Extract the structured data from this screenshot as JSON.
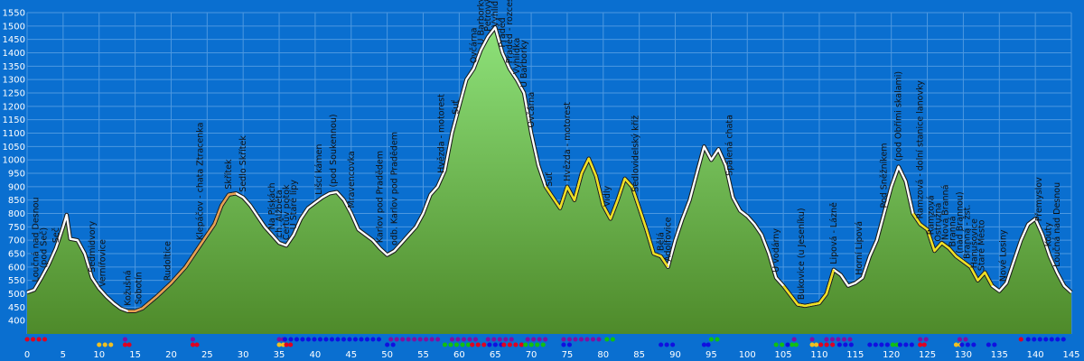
{
  "chart_data": {
    "type": "area",
    "title": "",
    "xlabel": "",
    "ylabel": "",
    "xlim": [
      0,
      145
    ],
    "ylim": [
      350,
      1550
    ],
    "x_ticks": [
      0,
      5,
      10,
      15,
      20,
      25,
      30,
      35,
      40,
      45,
      50,
      55,
      60,
      65,
      70,
      75,
      80,
      85,
      90,
      95,
      100,
      105,
      110,
      115,
      120,
      125,
      130,
      135,
      140,
      145
    ],
    "y_ticks": [
      400,
      450,
      500,
      550,
      600,
      650,
      700,
      750,
      800,
      850,
      900,
      950,
      1000,
      1050,
      1100,
      1150,
      1200,
      1250,
      1300,
      1350,
      1400,
      1450,
      1500,
      1550
    ],
    "grid": true,
    "colors": {
      "background": "#0a6fd0",
      "plot_bg": "#0a6fd0",
      "grid": "#4d98e0",
      "fill_top": "#8ee27a",
      "fill_bottom": "#4e8a2a",
      "edge_default": "#ffffff",
      "edge_road": "#e8a050",
      "edge_trail": "#f0e020",
      "red": "#e00020",
      "blue": "#1010e0",
      "purple": "#8010a0",
      "green": "#10c010",
      "yellow": "#f0c020"
    },
    "profile": [
      [
        0,
        505
      ],
      [
        1,
        515
      ],
      [
        2,
        560
      ],
      [
        3,
        610
      ],
      [
        4,
        670
      ],
      [
        5,
        750
      ],
      [
        5.5,
        795
      ],
      [
        6,
        705
      ],
      [
        7,
        700
      ],
      [
        8,
        650
      ],
      [
        9,
        560
      ],
      [
        10,
        520
      ],
      [
        11,
        490
      ],
      [
        12,
        465
      ],
      [
        13,
        445
      ],
      [
        14,
        435
      ],
      [
        15,
        435
      ],
      [
        16,
        445
      ],
      [
        18,
        490
      ],
      [
        20,
        540
      ],
      [
        22,
        600
      ],
      [
        24,
        680
      ],
      [
        26,
        760
      ],
      [
        27,
        830
      ],
      [
        28,
        870
      ],
      [
        29,
        875
      ],
      [
        30,
        860
      ],
      [
        31,
        830
      ],
      [
        32,
        790
      ],
      [
        33,
        750
      ],
      [
        34,
        720
      ],
      [
        35,
        690
      ],
      [
        36,
        680
      ],
      [
        37,
        720
      ],
      [
        38,
        780
      ],
      [
        39,
        820
      ],
      [
        40,
        840
      ],
      [
        41,
        860
      ],
      [
        42,
        875
      ],
      [
        43,
        880
      ],
      [
        44,
        850
      ],
      [
        45,
        800
      ],
      [
        46,
        740
      ],
      [
        48,
        700
      ],
      [
        49,
        670
      ],
      [
        50,
        645
      ],
      [
        51,
        660
      ],
      [
        52,
        690
      ],
      [
        53,
        720
      ],
      [
        54,
        750
      ],
      [
        55,
        800
      ],
      [
        56,
        870
      ],
      [
        57,
        900
      ],
      [
        58,
        960
      ],
      [
        59,
        1100
      ],
      [
        60,
        1200
      ],
      [
        61,
        1300
      ],
      [
        62,
        1340
      ],
      [
        63,
        1410
      ],
      [
        64,
        1460
      ],
      [
        65,
        1495
      ],
      [
        66,
        1400
      ],
      [
        67,
        1340
      ],
      [
        68,
        1300
      ],
      [
        69,
        1250
      ],
      [
        70,
        1100
      ],
      [
        71,
        980
      ],
      [
        72,
        900
      ],
      [
        73,
        860
      ],
      [
        74,
        820
      ],
      [
        75,
        900
      ],
      [
        76,
        850
      ],
      [
        77,
        950
      ],
      [
        78,
        1005
      ],
      [
        79,
        940
      ],
      [
        80,
        830
      ],
      [
        81,
        780
      ],
      [
        82,
        850
      ],
      [
        83,
        930
      ],
      [
        84,
        900
      ],
      [
        85,
        820
      ],
      [
        86,
        740
      ],
      [
        87,
        650
      ],
      [
        88,
        640
      ],
      [
        89,
        600
      ],
      [
        90,
        700
      ],
      [
        91,
        780
      ],
      [
        92,
        850
      ],
      [
        93,
        950
      ],
      [
        94,
        1050
      ],
      [
        95,
        1000
      ],
      [
        96,
        1040
      ],
      [
        97,
        980
      ],
      [
        98,
        860
      ],
      [
        99,
        810
      ],
      [
        100,
        790
      ],
      [
        101,
        760
      ],
      [
        102,
        720
      ],
      [
        103,
        650
      ],
      [
        104,
        560
      ],
      [
        105,
        530
      ],
      [
        106,
        495
      ],
      [
        107,
        460
      ],
      [
        108,
        455
      ],
      [
        109,
        460
      ],
      [
        110,
        465
      ],
      [
        111,
        500
      ],
      [
        112,
        590
      ],
      [
        113,
        570
      ],
      [
        114,
        530
      ],
      [
        115,
        540
      ],
      [
        116,
        560
      ],
      [
        117,
        640
      ],
      [
        118,
        700
      ],
      [
        119,
        800
      ],
      [
        120,
        900
      ],
      [
        121,
        975
      ],
      [
        122,
        920
      ],
      [
        123,
        800
      ],
      [
        124,
        760
      ],
      [
        125,
        740
      ],
      [
        126,
        660
      ],
      [
        127,
        690
      ],
      [
        128,
        670
      ],
      [
        129,
        640
      ],
      [
        130,
        620
      ],
      [
        131,
        600
      ],
      [
        132,
        550
      ],
      [
        133,
        580
      ],
      [
        134,
        530
      ],
      [
        135,
        510
      ],
      [
        136,
        540
      ],
      [
        137,
        620
      ],
      [
        138,
        700
      ],
      [
        139,
        760
      ],
      [
        140,
        780
      ],
      [
        141,
        720
      ],
      [
        142,
        640
      ],
      [
        143,
        580
      ],
      [
        144,
        530
      ],
      [
        145,
        505
      ]
    ],
    "edge_segments": [
      {
        "from": 14,
        "to": 29,
        "style": "road"
      },
      {
        "from": 72,
        "to": 89,
        "style": "trail"
      },
      {
        "from": 105,
        "to": 112,
        "style": "trail"
      },
      {
        "from": 123,
        "to": 134,
        "style": "trail"
      }
    ],
    "waypoints": [
      {
        "label": "Loučná nad Desnou",
        "x": 1.2
      },
      {
        "label": "(pod Seč)",
        "x": 2.3
      },
      {
        "label": "Seč",
        "x": 4.0
      },
      {
        "label": "Sedmidvory",
        "x": 9.0
      },
      {
        "label": "Vernířovice",
        "x": 10.5
      },
      {
        "label": "Kožušná",
        "x": 14.0
      },
      {
        "label": "Sobotín",
        "x": 15.5
      },
      {
        "label": "Rudoltice",
        "x": 19.5
      },
      {
        "label": "Klepáčov - chata Ztracenka",
        "x": 24.0
      },
      {
        "label": "Skřítek",
        "x": 28.0
      },
      {
        "label": "Sedlo Skřítek",
        "x": 30.0
      },
      {
        "label": "Na Pískách",
        "x": 34.0
      },
      {
        "label": "ch. Alžběta",
        "x": 35.0
      },
      {
        "label": "Čertův potok",
        "x": 36.0
      },
      {
        "label": "U Staré lípy",
        "x": 37.0
      },
      {
        "label": "Lišcí kámen",
        "x": 40.5
      },
      {
        "label": "(pod Soukennou)",
        "x": 42.5
      },
      {
        "label": "Mravencovka",
        "x": 45.0
      },
      {
        "label": "Karlov pod Pradědem",
        "x": 49.0
      },
      {
        "label": "odb. Karlov pod Pradědem",
        "x": 51.0
      },
      {
        "label": "Hvězda - motorest",
        "x": 57.5
      },
      {
        "label": "Suť",
        "x": 59.5
      },
      {
        "label": "Ovčárna",
        "x": 62.0
      },
      {
        "label": "U Barborky",
        "x": 63.0
      },
      {
        "label": "Petrovy kameny",
        "x": 64.0
      },
      {
        "label": "Vyhlídka",
        "x": 65.0
      },
      {
        "label": "Praděd",
        "x": 66.0
      },
      {
        "label": "Praděd - rozcestí",
        "x": 67.0
      },
      {
        "label": "Vyhlídka",
        "x": 68.0
      },
      {
        "label": "U Barborky",
        "x": 69.0
      },
      {
        "label": "Ovčárna",
        "x": 70.0
      },
      {
        "label": "Suť",
        "x": 72.5
      },
      {
        "label": "Hvězda - motorest",
        "x": 75.0
      },
      {
        "label": "Vidly",
        "x": 80.5
      },
      {
        "label": "Sedlovidelský kříž",
        "x": 84.5
      },
      {
        "label": "Bělá",
        "x": 88.0
      },
      {
        "label": "Adolfovice",
        "x": 89.0
      },
      {
        "label": "Spálená chata",
        "x": 97.5
      },
      {
        "label": "U vodárny",
        "x": 104.0
      },
      {
        "label": "Bukovice (u Jeseníku)",
        "x": 107.5
      },
      {
        "label": "Lipová - Lázně",
        "x": 112.0
      },
      {
        "label": "Horní Lipová",
        "x": 115.5
      },
      {
        "label": "Pod Sněžníkem",
        "x": 119.0
      },
      {
        "label": "(pod Obřími skalami)",
        "x": 121.0
      },
      {
        "label": "Ramzová - dolní stanice lanovky",
        "x": 124.0
      },
      {
        "label": "Ramzová",
        "x": 125.5
      },
      {
        "label": "Ostružná",
        "x": 126.5
      },
      {
        "label": "Nová Branná",
        "x": 127.5
      },
      {
        "label": "Branná",
        "x": 128.5
      },
      {
        "label": "(nad Brannou)",
        "x": 129.5
      },
      {
        "label": "Branná - žst.",
        "x": 130.5
      },
      {
        "label": "Hanušovice",
        "x": 131.5
      },
      {
        "label": "Staré Město",
        "x": 132.5
      },
      {
        "label": "Nové Losiny",
        "x": 135.5
      },
      {
        "label": "Přemyslov",
        "x": 140.5
      },
      {
        "label": "Kouty",
        "x": 141.8
      },
      {
        "label": "Loučná nad Desnou",
        "x": 143.0
      }
    ],
    "markers_row1": [
      {
        "color": "red",
        "from": 0.0,
        "to": 3.2
      },
      {
        "color": "purple",
        "from": 13.6,
        "to": 14.0
      },
      {
        "color": "purple",
        "from": 23.0,
        "to": 23.4
      },
      {
        "color": "purple",
        "from": 35.0,
        "to": 35.6
      },
      {
        "color": "blue",
        "from": 35.8,
        "to": 49.5
      },
      {
        "color": "purple",
        "from": 50.5,
        "to": 57.5
      },
      {
        "color": "purple",
        "from": 59.0,
        "to": 63.0
      },
      {
        "color": "purple",
        "from": 64.0,
        "to": 67.5
      },
      {
        "color": "purple",
        "from": 69.5,
        "to": 72.5
      },
      {
        "color": "purple",
        "from": 74.5,
        "to": 80.0
      },
      {
        "color": "green",
        "from": 80.5,
        "to": 82.0
      },
      {
        "color": "green",
        "from": 95.0,
        "to": 96.5
      },
      {
        "color": "purple",
        "from": 106.5,
        "to": 106.9
      },
      {
        "color": "purple",
        "from": 109.0,
        "to": 109.4
      },
      {
        "color": "purple",
        "from": 111.0,
        "to": 114.5
      },
      {
        "color": "purple",
        "from": 124.0,
        "to": 125.2
      },
      {
        "color": "purple",
        "from": 129.5,
        "to": 130.8
      },
      {
        "color": "red",
        "from": 138.0,
        "to": 138.4
      },
      {
        "color": "blue",
        "from": 139.0,
        "to": 144.5
      }
    ],
    "markers_row2": [
      {
        "color": "yellow",
        "from": 10.0,
        "to": 12.0
      },
      {
        "color": "red",
        "from": 13.6,
        "to": 14.3
      },
      {
        "color": "red",
        "from": 23.0,
        "to": 23.8
      },
      {
        "color": "yellow",
        "from": 35.0,
        "to": 35.8
      },
      {
        "color": "red",
        "from": 36.0,
        "to": 37.0
      },
      {
        "color": "blue",
        "from": 50.0,
        "to": 51.2
      },
      {
        "color": "green",
        "from": 58.0,
        "to": 61.5
      },
      {
        "color": "red",
        "from": 61.8,
        "to": 64.0
      },
      {
        "color": "blue",
        "from": 64.2,
        "to": 66.0
      },
      {
        "color": "red",
        "from": 66.2,
        "to": 69.0
      },
      {
        "color": "green",
        "from": 69.2,
        "to": 72.0
      },
      {
        "color": "blue",
        "from": 74.5,
        "to": 76.0
      },
      {
        "color": "blue",
        "from": 88.0,
        "to": 89.8
      },
      {
        "color": "blue",
        "from": 94.0,
        "to": 94.8
      },
      {
        "color": "green",
        "from": 104.0,
        "to": 105.5
      },
      {
        "color": "green",
        "from": 106.2,
        "to": 107.2
      },
      {
        "color": "blue",
        "from": 105.6,
        "to": 106.1
      },
      {
        "color": "yellow",
        "from": 109.0,
        "to": 110.0
      },
      {
        "color": "red",
        "from": 110.2,
        "to": 112.2
      },
      {
        "color": "blue",
        "from": 112.8,
        "to": 115.0
      },
      {
        "color": "blue",
        "from": 117.0,
        "to": 120.0
      },
      {
        "color": "green",
        "from": 120.2,
        "to": 121.0
      },
      {
        "color": "blue",
        "from": 121.2,
        "to": 123.0
      },
      {
        "color": "red",
        "from": 124.0,
        "to": 125.0
      },
      {
        "color": "yellow",
        "from": 129.0,
        "to": 129.6
      },
      {
        "color": "blue",
        "from": 129.8,
        "to": 131.5
      },
      {
        "color": "blue",
        "from": 133.5,
        "to": 135.0
      }
    ]
  }
}
